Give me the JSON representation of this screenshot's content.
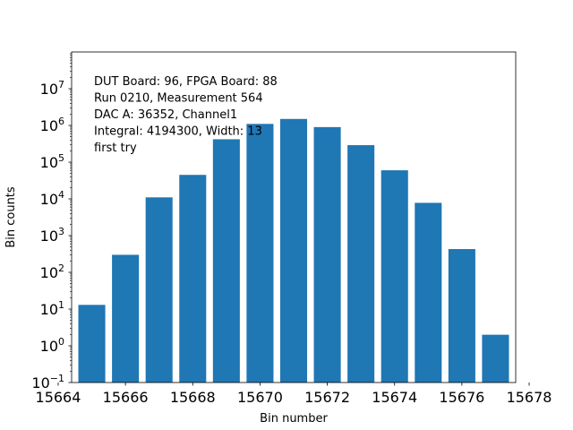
{
  "chart_data": {
    "type": "bar",
    "x": [
      15665,
      15666,
      15667,
      15668,
      15669,
      15670,
      15671,
      15672,
      15673,
      15674,
      15675,
      15676,
      15677
    ],
    "values": [
      13,
      300,
      11000,
      45000,
      420000,
      1100000,
      1500000,
      900000,
      290000,
      60000,
      7800,
      430,
      2
    ],
    "xlabel": "Bin number",
    "ylabel": "Bin counts",
    "xlim": [
      15664.4,
      15677.6
    ],
    "ylim": [
      0.1,
      100000000
    ],
    "yscale": "log",
    "grid": false,
    "bar_color": "#1f77b4",
    "x_ticks": [
      {
        "value": 15664,
        "label": "15664"
      },
      {
        "value": 15666,
        "label": "15666"
      },
      {
        "value": 15668,
        "label": "15668"
      },
      {
        "value": 15670,
        "label": "15670"
      },
      {
        "value": 15672,
        "label": "15672"
      },
      {
        "value": 15674,
        "label": "15674"
      },
      {
        "value": 15676,
        "label": "15676"
      },
      {
        "value": 15678,
        "label": "15678"
      }
    ],
    "y_ticks": [
      {
        "exp": -1,
        "base": "10",
        "sup": "−1"
      },
      {
        "exp": 0,
        "base": "10",
        "sup": "0"
      },
      {
        "exp": 1,
        "base": "10",
        "sup": "1"
      },
      {
        "exp": 2,
        "base": "10",
        "sup": "2"
      },
      {
        "exp": 3,
        "base": "10",
        "sup": "3"
      },
      {
        "exp": 4,
        "base": "10",
        "sup": "4"
      },
      {
        "exp": 5,
        "base": "10",
        "sup": "5"
      },
      {
        "exp": 6,
        "base": "10",
        "sup": "6"
      },
      {
        "exp": 7,
        "base": "10",
        "sup": "7"
      }
    ],
    "annotations": [
      "DUT Board: 96, FPGA Board: 88",
      "Run 0210, Measurement 564",
      "DAC A: 36352, Channel1",
      "Integral: 4194300, Width: 13",
      "first try"
    ]
  }
}
